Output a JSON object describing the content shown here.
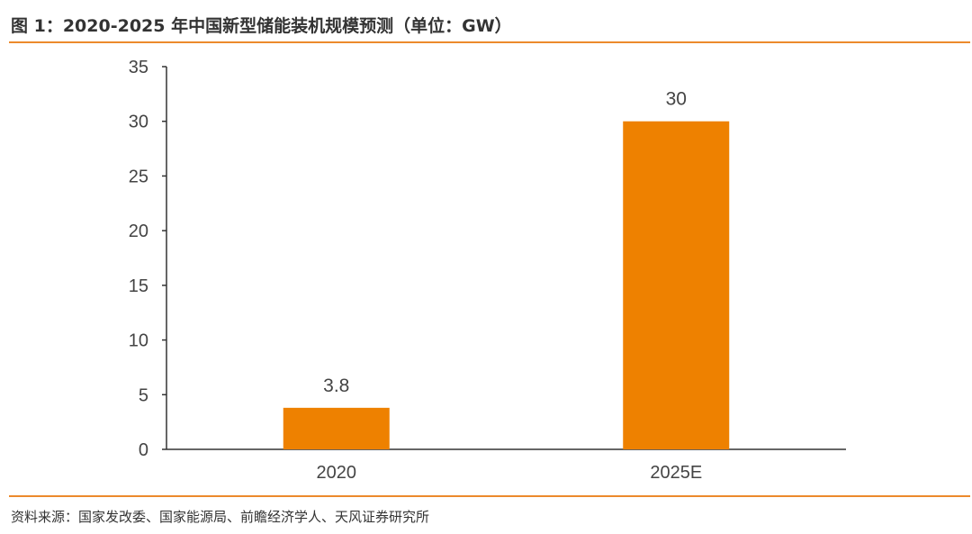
{
  "header": {
    "title": "图 1：2020-2025 年中国新型储能装机规模预测（单位：GW）"
  },
  "footer": {
    "source": "资料来源：国家发改委、国家能源局、前瞻经济学人、天风证券研究所"
  },
  "colors": {
    "accent": "#ec8a2c",
    "bar": "#ee8100"
  },
  "chart_data": {
    "type": "bar",
    "categories": [
      "2020",
      "2025E"
    ],
    "values": [
      3.8,
      30
    ],
    "data_labels": [
      "3.8",
      "30"
    ],
    "title": "",
    "xlabel": "",
    "ylabel": "",
    "ylim": [
      0,
      35
    ],
    "yticks": [
      "0",
      "5",
      "10",
      "15",
      "20",
      "25",
      "30",
      "35"
    ],
    "grid": false,
    "legend": "none"
  }
}
